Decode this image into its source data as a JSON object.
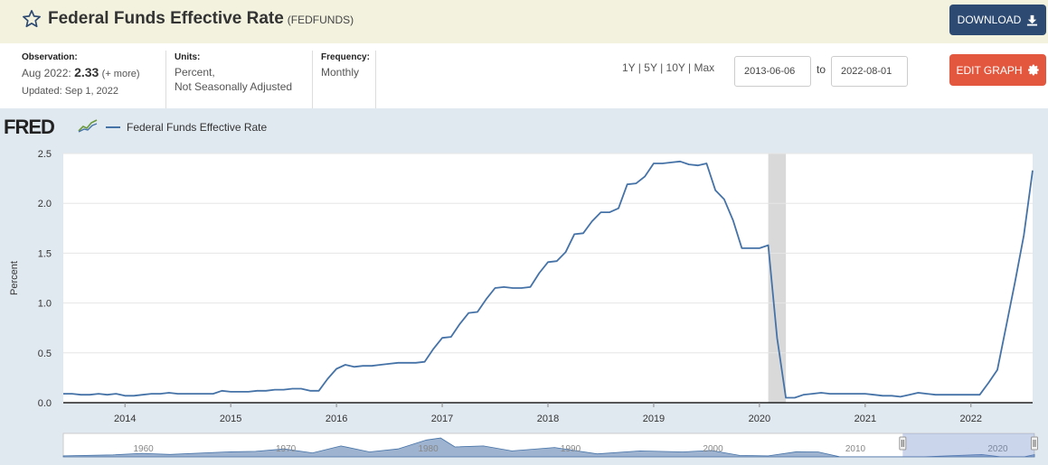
{
  "header": {
    "title": "Federal Funds Effective Rate",
    "series_id": "(FEDFUNDS)",
    "download_label": "DOWNLOAD",
    "edit_label": "EDIT GRAPH"
  },
  "meta": {
    "observation_label": "Observation:",
    "observation_date": "Aug 2022:",
    "observation_value": "2.33",
    "more_label": "(+ more)",
    "updated": "Updated: Sep 1, 2022",
    "units_label": "Units:",
    "units_line1": "Percent,",
    "units_line2": "Not Seasonally Adjusted",
    "frequency_label": "Frequency:",
    "frequency_value": "Monthly"
  },
  "range_buttons": [
    "1Y",
    "5Y",
    "10Y",
    "Max"
  ],
  "date_start": "2013-06-06",
  "date_end": "2022-08-01",
  "to_label": "to",
  "logo_text": "FRED",
  "colors": {
    "line": "#4572a7",
    "recession": "#d9d9d9",
    "download": "#2d4a72",
    "edit": "#e2573e"
  },
  "icons": {
    "star": "star-icon",
    "download": "download-icon",
    "gear": "gear-icon"
  },
  "chart_data": {
    "type": "line",
    "ylabel": "Percent",
    "ylim": [
      0,
      2.5
    ],
    "yticks": [
      "0.0",
      "0.5",
      "1.0",
      "1.5",
      "2.0",
      "2.5"
    ],
    "xticks": [
      "2014",
      "2015",
      "2016",
      "2017",
      "2018",
      "2019",
      "2020",
      "2021",
      "2022"
    ],
    "xlim": [
      "2013-06",
      "2022-08"
    ],
    "recession": [
      "2020-02",
      "2020-04"
    ],
    "series": [
      {
        "name": "Federal Funds Effective Rate",
        "points": [
          [
            "2013-06",
            0.09
          ],
          [
            "2013-07",
            0.09
          ],
          [
            "2013-08",
            0.08
          ],
          [
            "2013-09",
            0.08
          ],
          [
            "2013-10",
            0.09
          ],
          [
            "2013-11",
            0.08
          ],
          [
            "2013-12",
            0.09
          ],
          [
            "2014-01",
            0.07
          ],
          [
            "2014-02",
            0.07
          ],
          [
            "2014-03",
            0.08
          ],
          [
            "2014-04",
            0.09
          ],
          [
            "2014-05",
            0.09
          ],
          [
            "2014-06",
            0.1
          ],
          [
            "2014-07",
            0.09
          ],
          [
            "2014-08",
            0.09
          ],
          [
            "2014-09",
            0.09
          ],
          [
            "2014-10",
            0.09
          ],
          [
            "2014-11",
            0.09
          ],
          [
            "2014-12",
            0.12
          ],
          [
            "2015-01",
            0.11
          ],
          [
            "2015-02",
            0.11
          ],
          [
            "2015-03",
            0.11
          ],
          [
            "2015-04",
            0.12
          ],
          [
            "2015-05",
            0.12
          ],
          [
            "2015-06",
            0.13
          ],
          [
            "2015-07",
            0.13
          ],
          [
            "2015-08",
            0.14
          ],
          [
            "2015-09",
            0.14
          ],
          [
            "2015-10",
            0.12
          ],
          [
            "2015-11",
            0.12
          ],
          [
            "2015-12",
            0.24
          ],
          [
            "2016-01",
            0.34
          ],
          [
            "2016-02",
            0.38
          ],
          [
            "2016-03",
            0.36
          ],
          [
            "2016-04",
            0.37
          ],
          [
            "2016-05",
            0.37
          ],
          [
            "2016-06",
            0.38
          ],
          [
            "2016-07",
            0.39
          ],
          [
            "2016-08",
            0.4
          ],
          [
            "2016-09",
            0.4
          ],
          [
            "2016-10",
            0.4
          ],
          [
            "2016-11",
            0.41
          ],
          [
            "2016-12",
            0.54
          ],
          [
            "2017-01",
            0.65
          ],
          [
            "2017-02",
            0.66
          ],
          [
            "2017-03",
            0.79
          ],
          [
            "2017-04",
            0.9
          ],
          [
            "2017-05",
            0.91
          ],
          [
            "2017-06",
            1.04
          ],
          [
            "2017-07",
            1.15
          ],
          [
            "2017-08",
            1.16
          ],
          [
            "2017-09",
            1.15
          ],
          [
            "2017-10",
            1.15
          ],
          [
            "2017-11",
            1.16
          ],
          [
            "2017-12",
            1.3
          ],
          [
            "2018-01",
            1.41
          ],
          [
            "2018-02",
            1.42
          ],
          [
            "2018-03",
            1.51
          ],
          [
            "2018-04",
            1.69
          ],
          [
            "2018-05",
            1.7
          ],
          [
            "2018-06",
            1.82
          ],
          [
            "2018-07",
            1.91
          ],
          [
            "2018-08",
            1.91
          ],
          [
            "2018-09",
            1.95
          ],
          [
            "2018-10",
            2.19
          ],
          [
            "2018-11",
            2.2
          ],
          [
            "2018-12",
            2.27
          ],
          [
            "2019-01",
            2.4
          ],
          [
            "2019-02",
            2.4
          ],
          [
            "2019-03",
            2.41
          ],
          [
            "2019-04",
            2.42
          ],
          [
            "2019-05",
            2.39
          ],
          [
            "2019-06",
            2.38
          ],
          [
            "2019-07",
            2.4
          ],
          [
            "2019-08",
            2.13
          ],
          [
            "2019-09",
            2.04
          ],
          [
            "2019-10",
            1.83
          ],
          [
            "2019-11",
            1.55
          ],
          [
            "2019-12",
            1.55
          ],
          [
            "2020-01",
            1.55
          ],
          [
            "2020-02",
            1.58
          ],
          [
            "2020-03",
            0.65
          ],
          [
            "2020-04",
            0.05
          ],
          [
            "2020-05",
            0.05
          ],
          [
            "2020-06",
            0.08
          ],
          [
            "2020-07",
            0.09
          ],
          [
            "2020-08",
            0.1
          ],
          [
            "2020-09",
            0.09
          ],
          [
            "2020-10",
            0.09
          ],
          [
            "2020-11",
            0.09
          ],
          [
            "2020-12",
            0.09
          ],
          [
            "2021-01",
            0.09
          ],
          [
            "2021-02",
            0.08
          ],
          [
            "2021-03",
            0.07
          ],
          [
            "2021-04",
            0.07
          ],
          [
            "2021-05",
            0.06
          ],
          [
            "2021-06",
            0.08
          ],
          [
            "2021-07",
            0.1
          ],
          [
            "2021-08",
            0.09
          ],
          [
            "2021-09",
            0.08
          ],
          [
            "2021-10",
            0.08
          ],
          [
            "2021-11",
            0.08
          ],
          [
            "2021-12",
            0.08
          ],
          [
            "2022-01",
            0.08
          ],
          [
            "2022-02",
            0.08
          ],
          [
            "2022-03",
            0.2
          ],
          [
            "2022-04",
            0.33
          ],
          [
            "2022-05",
            0.77
          ],
          [
            "2022-06",
            1.21
          ],
          [
            "2022-07",
            1.68
          ],
          [
            "2022-08",
            2.33
          ]
        ]
      }
    ]
  },
  "navigator": {
    "ticks": [
      "1960",
      "1970",
      "1980",
      "1990",
      "2000",
      "2010",
      "2020"
    ]
  }
}
